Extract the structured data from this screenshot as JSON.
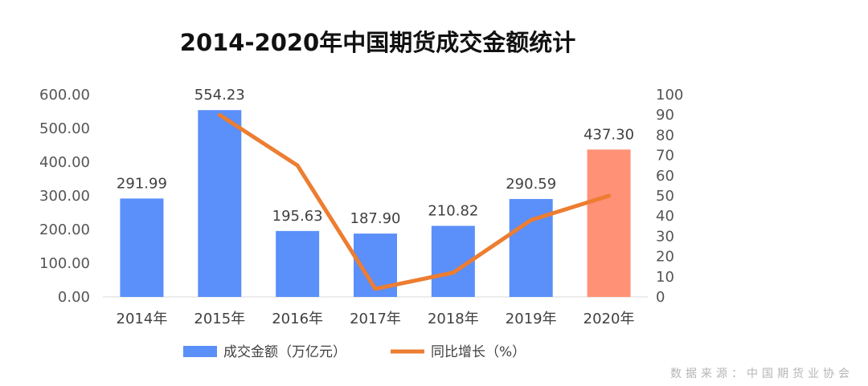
{
  "chart_data": {
    "type": "bar",
    "title": "2014-2020年中国期货成交金额统计",
    "categories": [
      "2014年",
      "2015年",
      "2016年",
      "2017年",
      "2018年",
      "2019年",
      "2020年"
    ],
    "series": [
      {
        "name": "成交金额（万亿元）",
        "type": "bar",
        "axis": "left",
        "values": [
          291.99,
          554.23,
          195.63,
          187.9,
          210.82,
          290.59,
          437.3
        ],
        "labels": [
          "291.99",
          "554.23",
          "195.63",
          "187.90",
          "210.82",
          "290.59",
          "437.30"
        ],
        "color": "#5b8ff9",
        "highlight_color": "#ff9176",
        "highlight_index": 6
      },
      {
        "name": "同比增长（%）",
        "type": "line",
        "axis": "right",
        "values": [
          null,
          90,
          65,
          4,
          12,
          38,
          50
        ],
        "color": "#ed7d31"
      }
    ],
    "y_left": {
      "min": 0,
      "max": 600,
      "step": 100,
      "ticks": [
        "0.00",
        "100.00",
        "200.00",
        "300.00",
        "400.00",
        "500.00",
        "600.00"
      ]
    },
    "y_right": {
      "min": 0,
      "max": 100,
      "step": 10,
      "ticks": [
        "0",
        "10",
        "20",
        "30",
        "40",
        "50",
        "60",
        "70",
        "80",
        "90",
        "100"
      ]
    },
    "grid": false,
    "legend_position": "bottom"
  },
  "source_text": "数据来源：中国期货业协会"
}
